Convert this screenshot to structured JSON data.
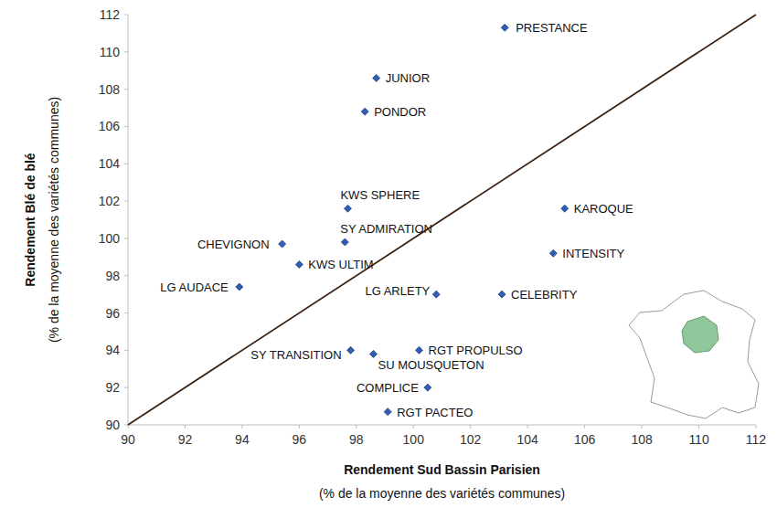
{
  "chart_data": {
    "type": "scatter",
    "xlabel": [
      "Rendement Sud Bassin Parisien",
      "(% de la moyenne des variétés communes)"
    ],
    "ylabel": [
      "Rendement Blé de blé",
      "(% de la moyenne des variétés communes)"
    ],
    "labels": [
      "PRESTANCE",
      "JUNIOR",
      "PONDOR",
      "KWS SPHERE",
      "SY ADMIRATION",
      "CHEVIGNON",
      "KWS ULTIM",
      "LG AUDACE",
      "LG ARLETY",
      "CELEBRITY",
      "KAROQUE",
      "INTENSITY",
      "SY TRANSITION",
      "SU MOUSQUETON",
      "RGT PROPULSO",
      "COMPLICE",
      "RGT PACTEO"
    ],
    "x": [
      103.2,
      98.7,
      98.3,
      97.7,
      97.6,
      95.4,
      96.0,
      93.9,
      100.8,
      103.1,
      105.3,
      104.9,
      97.8,
      98.6,
      100.2,
      100.5,
      99.1
    ],
    "values": [
      111.3,
      108.6,
      106.8,
      101.6,
      99.8,
      99.7,
      98.6,
      97.4,
      97.0,
      97.0,
      101.6,
      99.2,
      94.0,
      93.8,
      94.0,
      92.0,
      90.7
    ],
    "color": "#2e5fb4",
    "marker": "diamond",
    "xlim": [
      90,
      112
    ],
    "ylim": [
      90,
      112
    ],
    "xticks": [
      90,
      92,
      94,
      96,
      98,
      100,
      102,
      104,
      106,
      108,
      110,
      112
    ],
    "yticks": [
      90,
      92,
      94,
      96,
      98,
      100,
      102,
      104,
      106,
      108,
      110,
      112
    ],
    "grid": false
  }
}
